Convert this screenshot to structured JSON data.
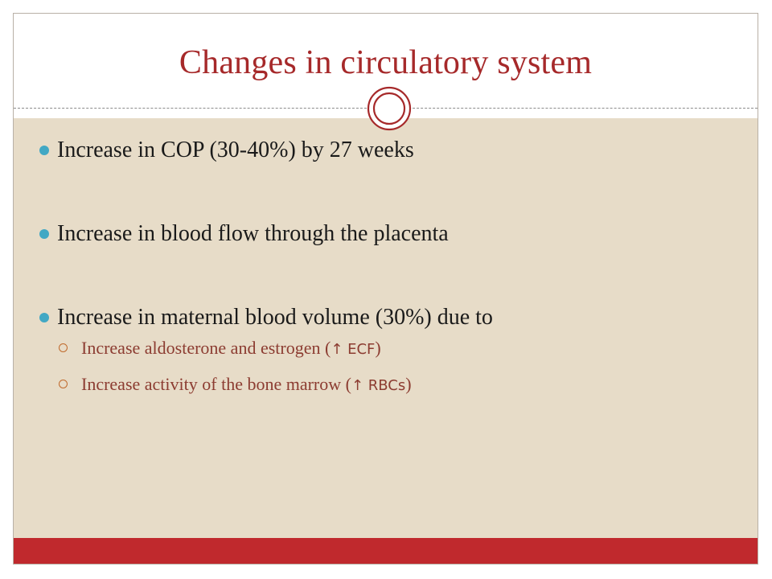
{
  "slide": {
    "title": "Changes in circulatory system",
    "bullets": [
      {
        "text": "Increase in COP (30-40%) by 27 weeks"
      },
      {
        "text": "Increase in blood flow through the placenta"
      },
      {
        "text": "Increase in maternal blood volume (30%) due to",
        "sub": [
          {
            "text": "Increase aldosterone and estrogen (",
            "symbol": "↑ ECF",
            "close": ")"
          },
          {
            "text": "Increase activity of the bone marrow  (",
            "symbol": "↑ RBCs",
            "close": ")"
          }
        ]
      }
    ]
  },
  "colors": {
    "title": "#a6292a",
    "body_bg": "#e7dcc8",
    "bullet_dot": "#42a8c4",
    "sub_text": "#8c3c31",
    "footer": "#c0292d"
  },
  "icons": {
    "ornament": "double-circle-icon",
    "level1_bullet": "filled-circle-bullet-icon",
    "level2_bullet": "hollow-circle-bullet-icon"
  }
}
